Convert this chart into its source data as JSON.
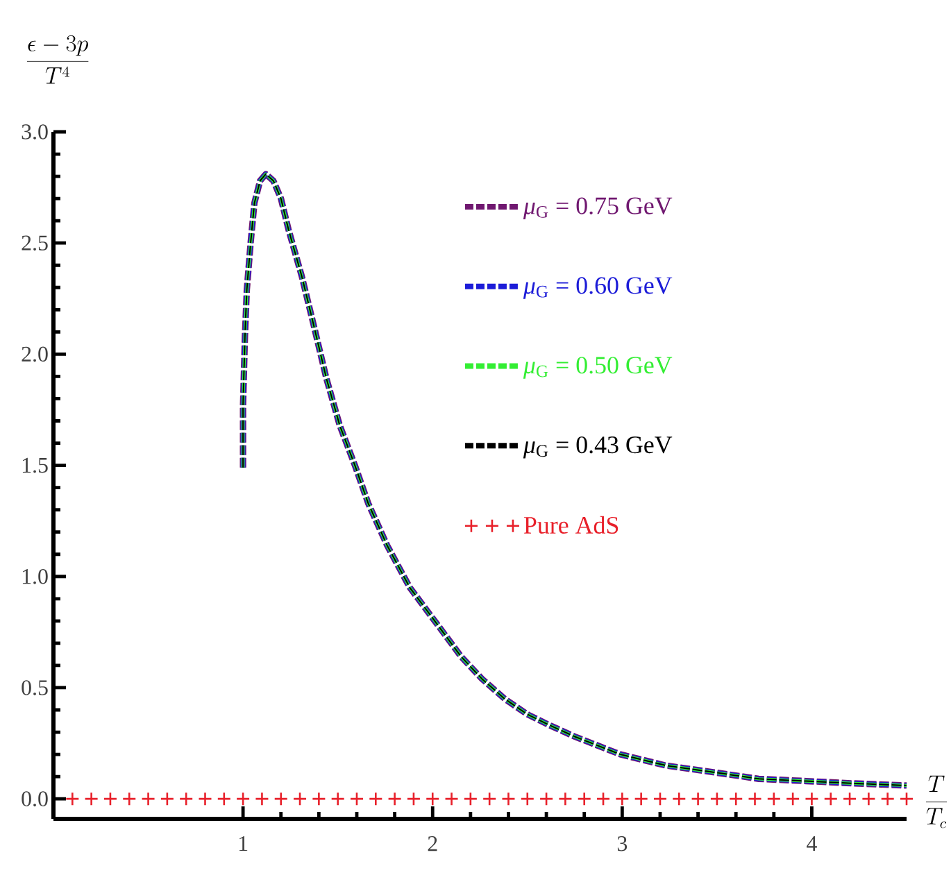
{
  "chart_data": {
    "type": "line",
    "xlabel": "\\frac{T}{T_c}",
    "ylabel": "\\frac{\\epsilon-3p}{T^{4}}",
    "x": [
      1.0,
      1.0,
      1.01,
      1.02,
      1.04,
      1.06,
      1.09,
      1.12,
      1.16,
      1.2,
      1.24,
      1.31,
      1.37,
      1.44,
      1.51,
      1.59,
      1.66,
      1.76,
      1.88,
      2.02,
      2.15,
      2.26,
      2.38,
      2.5,
      2.62,
      2.75,
      2.99,
      3.23,
      3.48,
      3.72,
      3.97,
      4.21,
      4.5
    ],
    "series": [
      {
        "name": "*μ*$_{G}$ = 0.75 GeV",
        "color": "#701870",
        "values": [
          1.49,
          1.77,
          2.08,
          2.29,
          2.5,
          2.68,
          2.78,
          2.81,
          2.78,
          2.7,
          2.56,
          2.35,
          2.14,
          1.89,
          1.68,
          1.5,
          1.33,
          1.14,
          0.95,
          0.79,
          0.64,
          0.54,
          0.45,
          0.38,
          0.33,
          0.28,
          0.2,
          0.15,
          0.12,
          0.09,
          0.08,
          0.07,
          0.06
        ]
      },
      {
        "name": "*μ*$_{G}$ = 0.60 GeV",
        "color": "#1c1cd8",
        "values": [
          1.49,
          1.77,
          2.08,
          2.29,
          2.5,
          2.68,
          2.78,
          2.81,
          2.78,
          2.7,
          2.56,
          2.35,
          2.14,
          1.89,
          1.68,
          1.5,
          1.33,
          1.14,
          0.95,
          0.79,
          0.64,
          0.54,
          0.45,
          0.38,
          0.33,
          0.28,
          0.2,
          0.15,
          0.12,
          0.09,
          0.08,
          0.07,
          0.06
        ]
      },
      {
        "name": "*μ*$_{G}$ = 0.50 GeV",
        "color": "#33ee33",
        "values": [
          1.49,
          1.77,
          2.08,
          2.29,
          2.5,
          2.68,
          2.78,
          2.81,
          2.78,
          2.7,
          2.56,
          2.35,
          2.14,
          1.89,
          1.68,
          1.5,
          1.33,
          1.14,
          0.95,
          0.79,
          0.64,
          0.54,
          0.45,
          0.38,
          0.33,
          0.28,
          0.2,
          0.15,
          0.12,
          0.09,
          0.08,
          0.07,
          0.06
        ]
      },
      {
        "name": "*μ*$_{G}$ = 0.43 GeV",
        "color": "#000000",
        "values": [
          1.49,
          1.77,
          2.08,
          2.29,
          2.5,
          2.68,
          2.78,
          2.81,
          2.78,
          2.7,
          2.56,
          2.35,
          2.14,
          1.89,
          1.68,
          1.5,
          1.33,
          1.14,
          0.95,
          0.79,
          0.64,
          0.54,
          0.45,
          0.38,
          0.33,
          0.28,
          0.2,
          0.15,
          0.12,
          0.09,
          0.08,
          0.07,
          0.06
        ]
      },
      {
        "name": "Pure AdS",
        "type": "scatter",
        "marker": "cross",
        "color": "#e8202a",
        "x": [
          0.1,
          0.2,
          0.3,
          0.4,
          0.5,
          0.6,
          0.7,
          0.8,
          0.9,
          1.0,
          1.1,
          1.2,
          1.3,
          1.4,
          1.5,
          1.6,
          1.7,
          1.8,
          1.9,
          2.0,
          2.1,
          2.2,
          2.3,
          2.4,
          2.5,
          2.6,
          2.7,
          2.8,
          2.9,
          3.0,
          3.1,
          3.2,
          3.3,
          3.4,
          3.5,
          3.6,
          3.7,
          3.8,
          3.9,
          4.0,
          4.1,
          4.2,
          4.3,
          4.4,
          4.5
        ],
        "values": [
          0,
          0,
          0,
          0,
          0,
          0,
          0,
          0,
          0,
          0,
          0,
          0,
          0,
          0,
          0,
          0,
          0,
          0,
          0,
          0,
          0,
          0,
          0,
          0,
          0,
          0,
          0,
          0,
          0,
          0,
          0,
          0,
          0,
          0,
          0,
          0,
          0,
          0,
          0,
          0,
          0,
          0,
          0,
          0,
          0
        ]
      }
    ],
    "xlim": [
      0,
      4.5
    ],
    "ylim": [
      -0.09,
      3.0
    ],
    "xticks": [
      1,
      2,
      3,
      4
    ],
    "yticks": [
      {
        "value": 0,
        "label": "0.0"
      },
      0.5,
      {
        "value": 1,
        "label": "1.0"
      },
      1.5,
      {
        "value": 2,
        "label": "2.0"
      },
      2.5,
      {
        "value": 3,
        "label": "3.0"
      }
    ],
    "legend": "top right",
    "line_style": "dashed"
  }
}
